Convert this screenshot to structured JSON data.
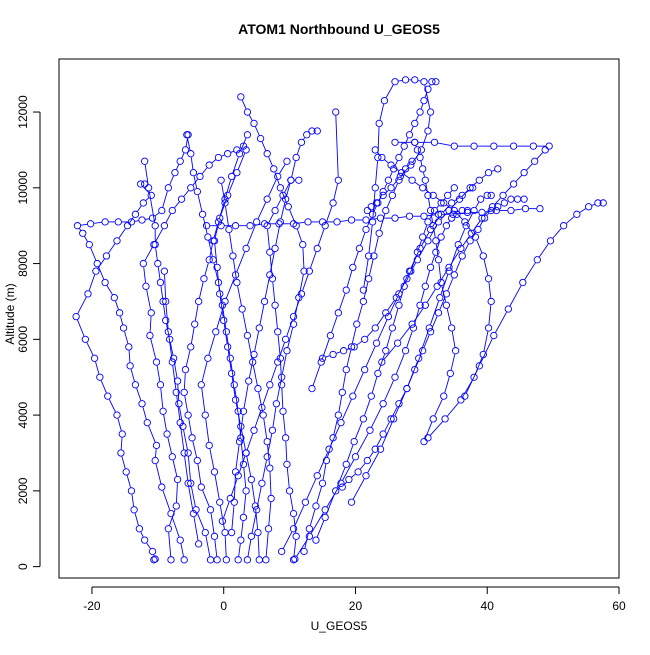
{
  "chart_data": {
    "type": "line",
    "title": "ATOM1 Northbound U_GEOS5",
    "xlabel": "U_GEOS5",
    "ylabel": "Altitude (m)",
    "xlim": [
      -25,
      60
    ],
    "ylim": [
      -300,
      13400
    ],
    "xticks": [
      -20,
      0,
      20,
      40,
      60
    ],
    "yticks": [
      0,
      2000,
      4000,
      6000,
      8000,
      10000,
      12000
    ],
    "grid": false,
    "legend": "none",
    "marker": "open-circle",
    "color": "#0000ff",
    "series": [
      {
        "x": [
          -10.6,
          -10.4,
          -10.8,
          -12.0,
          -12.8,
          -13.6,
          -14.0,
          -14.8,
          -15.6,
          -15.4,
          -16.2,
          -17.6,
          -18.8,
          -19.6,
          -21.0,
          -22.4,
          -20.6,
          -19.4,
          -17.8,
          -16.2,
          -14.6,
          -13.4,
          -12.2,
          -11.0,
          -12.6,
          -12.0
        ],
        "y": [
          180,
          200,
          400,
          700,
          1000,
          1500,
          2000,
          2500,
          3000,
          3500,
          4000,
          4500,
          5000,
          5500,
          6000,
          6600,
          7200,
          7800,
          8200,
          8600,
          9000,
          9300,
          9600,
          9800,
          10100,
          10100
        ]
      },
      {
        "x": [
          -6.0,
          -6.6,
          -8.0,
          -9.4,
          -10.4,
          -10.2,
          -11.6,
          -12.4,
          -13.4,
          -14.2,
          -14.4,
          -15.2,
          -15.8,
          -16.6,
          -18.0,
          -19.2,
          -20.4,
          -21.4,
          -22.2,
          -20.2,
          -18.0,
          -16.0,
          -14.0,
          -12.4,
          -10.8,
          -9.4,
          -8.4,
          -7.4,
          -6.6,
          -5.8,
          -5.4
        ],
        "y": [
          180,
          700,
          1400,
          2100,
          2800,
          3200,
          3800,
          4300,
          4800,
          5300,
          5800,
          6300,
          6700,
          7100,
          7500,
          8000,
          8500,
          8800,
          9000,
          9050,
          9100,
          9100,
          9100,
          9150,
          9200,
          9400,
          10000,
          10400,
          10700,
          11000,
          11400
        ]
      },
      {
        "x": [
          -8.0,
          -8.4,
          -7.2,
          -7.0,
          -7.8,
          -8.6,
          -9.2,
          -9.6,
          -10.2,
          -11.2,
          -11.0,
          -11.8,
          -12.2,
          -10.6,
          -9.0,
          -7.8,
          -6.4,
          -5.0,
          -3.6,
          -2.2,
          -0.8,
          0.6,
          2.0,
          3.0
        ],
        "y": [
          180,
          1000,
          1600,
          2300,
          2900,
          3500,
          4100,
          4800,
          5400,
          6100,
          6700,
          7400,
          8000,
          8500,
          9000,
          9400,
          9700,
          10000,
          10300,
          10600,
          10800,
          10900,
          11000,
          11100
        ]
      },
      {
        "x": [
          -2.0,
          -2.8,
          -4.2,
          -5.0,
          -5.4,
          -6.2,
          -6.8,
          -7.0,
          -7.6,
          -8.2,
          -8.8,
          -9.2,
          -9.6,
          -10.0,
          -10.4,
          -10.4,
          -11.4,
          -12.0
        ],
        "y": [
          180,
          900,
          1500,
          2200,
          3000,
          3700,
          4300,
          4900,
          5500,
          6000,
          6500,
          7000,
          7500,
          8000,
          8500,
          9000,
          10000,
          10700
        ]
      },
      {
        "x": [
          -1.0,
          -1.4,
          -2.0,
          -3.4,
          -4.0,
          -4.8,
          -5.4,
          -6.0,
          -5.8,
          -5.0,
          -4.4,
          -3.8,
          -3.0,
          -2.2,
          -1.6,
          -0.8,
          0.2,
          1.2,
          2.4,
          3.6
        ],
        "y": [
          180,
          800,
          1500,
          2100,
          2800,
          3400,
          4000,
          4600,
          5200,
          5800,
          6400,
          7000,
          7600,
          8100,
          8600,
          9100,
          9700,
          10300,
          10900,
          11400
        ]
      },
      {
        "x": [
          0.4,
          0.2,
          -0.6,
          -1.4,
          -2.2,
          -2.8,
          -3.4,
          -2.4,
          -1.2,
          0.2,
          1.8,
          3.4,
          5.0,
          6.6,
          8.2,
          9.6
        ],
        "y": [
          180,
          900,
          1700,
          2500,
          3200,
          4000,
          4800,
          5500,
          6200,
          7000,
          7700,
          8400,
          9100,
          9700,
          10300,
          10700
        ]
      },
      {
        "x": [
          2.2,
          2.6,
          3.0,
          3.4,
          3.0,
          2.6,
          2.2,
          1.6,
          1.0,
          0.4,
          -0.2,
          -0.8,
          -1.6,
          -2.4,
          -3.2,
          -4.0,
          -4.6,
          -5.0,
          -5.6
        ],
        "y": [
          180,
          700,
          1300,
          2000,
          2700,
          3400,
          4100,
          4800,
          5500,
          6200,
          6900,
          7500,
          8100,
          8700,
          9300,
          9900,
          10400,
          10900,
          11400
        ]
      },
      {
        "x": [
          3.6,
          4.2,
          5.0,
          5.8,
          6.6,
          7.4,
          8.0,
          8.8,
          9.6,
          10.6,
          11.4,
          12.2,
          12.0,
          11.0,
          9.8,
          8.6,
          7.6,
          6.6,
          5.6,
          4.6,
          3.6,
          2.6
        ],
        "y": [
          180,
          800,
          1500,
          2200,
          2900,
          3600,
          4300,
          5000,
          5700,
          6400,
          7100,
          7800,
          8500,
          9000,
          9500,
          10000,
          10500,
          10900,
          11300,
          11700,
          12000,
          12400
        ]
      },
      {
        "x": [
          5.4,
          5.2,
          4.8,
          4.2,
          3.4,
          2.6,
          1.8,
          1.2,
          0.6,
          0.0,
          -0.6,
          -1.0,
          -1.4,
          -0.6,
          0.6,
          2.0,
          3.4
        ],
        "y": [
          180,
          900,
          1600,
          2300,
          3000,
          3700,
          4400,
          5100,
          5800,
          6500,
          7200,
          7900,
          8600,
          9200,
          9800,
          10400,
          11000
        ]
      },
      {
        "x": [
          6.4,
          6.8,
          7.2,
          7.0,
          6.6,
          6.0,
          5.2,
          4.4,
          3.6,
          2.8,
          2.0,
          1.4,
          0.8,
          0.2,
          -0.4
        ],
        "y": [
          180,
          1000,
          1800,
          2600,
          3300,
          4000,
          4700,
          5400,
          6100,
          6800,
          7500,
          8200,
          8900,
          9600,
          10200
        ]
      },
      {
        "x": [
          10.6,
          11.0,
          10.6,
          10.0,
          9.6,
          9.4,
          9.0,
          8.8,
          8.6,
          8.2,
          7.8,
          7.4,
          7.0,
          6.6,
          7.8,
          9.0,
          10.2,
          11.4
        ],
        "y": [
          180,
          800,
          1400,
          2000,
          2700,
          3400,
          4100,
          4800,
          5500,
          6200,
          6900,
          7600,
          8300,
          9000,
          9400,
          9800,
          10200,
          10200
        ]
      },
      {
        "x": [
          12.2,
          13.0,
          14.0,
          15.0,
          15.6,
          16.6,
          17.4,
          18.0,
          18.6,
          19.4,
          20.2,
          21.2,
          22.0,
          22.8,
          23.6,
          24.6,
          25.6,
          26.6,
          27.6,
          28.6
        ],
        "y": [
          400,
          1000,
          1600,
          2200,
          2800,
          3400,
          4000,
          4600,
          5200,
          5800,
          6400,
          7000,
          7600,
          8200,
          8800,
          9400,
          9800,
          10200,
          10500,
          10700
        ]
      },
      {
        "x": [
          14.0,
          15.4,
          17.0,
          18.6,
          19.8,
          21.2,
          22.4,
          23.4,
          24.6,
          25.6,
          26.6,
          27.4,
          28.4,
          29.4,
          30.2,
          31.0,
          32.0,
          33.0,
          34.0,
          35.0
        ],
        "y": [
          700,
          1300,
          2000,
          2700,
          3300,
          3900,
          4500,
          5100,
          5700,
          6300,
          6900,
          7400,
          7800,
          8300,
          8700,
          9100,
          9400,
          9600,
          9800,
          10000
        ]
      },
      {
        "x": [
          10.8,
          13.0,
          15.4,
          17.8,
          20.0,
          22.2,
          24.2,
          26.0,
          27.6,
          28.8,
          29.8,
          30.6,
          31.4,
          32.2,
          33.0,
          33.8,
          34.6,
          35.4,
          36.2,
          37.0
        ],
        "y": [
          200,
          800,
          1500,
          2200,
          2900,
          3600,
          4300,
          5000,
          5700,
          6300,
          6900,
          7400,
          7900,
          8300,
          8700,
          9000,
          9200,
          9300,
          9400,
          9400
        ]
      },
      {
        "x": [
          8.8,
          10.6,
          12.4,
          14.2,
          16.0,
          17.8,
          19.6,
          21.4,
          23.2,
          25.0,
          26.6,
          28.2,
          29.8,
          31.4,
          33.0,
          34.6,
          36.2,
          37.8
        ],
        "y": [
          400,
          1000,
          1700,
          2400,
          3100,
          3800,
          4500,
          5200,
          5900,
          6600,
          7200,
          7800,
          8400,
          8900,
          9300,
          9600,
          9800,
          10000
        ]
      },
      {
        "x": [
          19.4,
          21.6,
          23.8,
          25.8,
          27.8,
          29.6,
          31.2,
          32.8,
          34.2,
          35.6,
          36.8,
          38.0,
          39.0,
          40.0,
          40.6
        ],
        "y": [
          1700,
          2400,
          3100,
          3900,
          4700,
          5500,
          6300,
          7100,
          7800,
          8500,
          9000,
          9400,
          9700,
          9800,
          9800
        ]
      },
      {
        "x": [
          30.4,
          31.8,
          33.4,
          34.4,
          35.2,
          34.6,
          33.8,
          33.0,
          32.6,
          32.2,
          31.8,
          31.4,
          31.0,
          30.6,
          30.2,
          29.8,
          29.4,
          29.0
        ],
        "y": [
          3300,
          3900,
          4500,
          5100,
          5700,
          6300,
          6900,
          7500,
          8100,
          8600,
          9000,
          9400,
          9800,
          10200,
          10500,
          10800,
          11000,
          11200
        ]
      },
      {
        "x": [
          31.0,
          33.6,
          36.0,
          38.0,
          39.4,
          40.2,
          40.6,
          40.2,
          39.4,
          38.2,
          36.6,
          35.0,
          33.4,
          31.8,
          30.2,
          28.6,
          27.0,
          25.4,
          24.0,
          23.0
        ],
        "y": [
          3400,
          3900,
          4400,
          5000,
          5600,
          6300,
          7000,
          7600,
          8200,
          8700,
          9100,
          9400,
          9600,
          9800,
          10000,
          10200,
          10400,
          10600,
          10800,
          11000
        ]
      },
      {
        "x": [
          18.0,
          19.0,
          20.4,
          21.8,
          23.0,
          24.2,
          25.4,
          26.6,
          27.8,
          29.0,
          30.2,
          31.4,
          32.6,
          33.8,
          35.0,
          36.2,
          37.4,
          38.6,
          39.6,
          40.6,
          41.6,
          42.6,
          43.6,
          44.6,
          45.6
        ],
        "y": [
          2100,
          2300,
          2500,
          2800,
          3100,
          3500,
          3900,
          4300,
          4700,
          5200,
          5700,
          6200,
          6700,
          7200,
          7700,
          8200,
          8600,
          8900,
          9200,
          9400,
          9500,
          9600,
          9700,
          9700,
          9700
        ]
      },
      {
        "x": [
          36.6,
          38.8,
          41.0,
          43.2,
          45.4,
          47.6,
          49.6,
          51.6,
          53.6,
          55.4,
          56.8,
          57.6
        ],
        "y": [
          4500,
          5300,
          6100,
          6800,
          7500,
          8100,
          8600,
          9000,
          9300,
          9500,
          9600,
          9600
        ]
      },
      {
        "x": [
          24.0,
          26.4,
          28.6,
          30.6,
          32.4,
          34.2,
          36.0,
          37.6,
          39.2,
          40.8,
          42.4,
          44.0,
          45.6,
          47.2,
          48.8,
          49.4,
          47.0,
          44.0,
          41.0,
          38.0,
          35.0,
          32.0,
          29.0,
          26.0
        ],
        "y": [
          5400,
          5900,
          6400,
          6900,
          7400,
          7900,
          8400,
          8800,
          9200,
          9500,
          9800,
          10100,
          10400,
          10700,
          11000,
          11100,
          11100,
          11100,
          11100,
          11100,
          11100,
          11200,
          11200,
          11200
        ]
      },
      {
        "x": [
          15.0,
          16.6,
          18.2,
          19.8,
          21.4,
          23.0,
          24.6,
          26.2,
          27.8,
          29.4,
          31.0,
          32.6,
          34.2,
          35.8,
          37.4,
          38.8,
          40.2,
          41.6
        ],
        "y": [
          5500,
          5600,
          5700,
          5800,
          6000,
          6300,
          6700,
          7100,
          7600,
          8100,
          8600,
          9100,
          9400,
          9700,
          10000,
          10200,
          10400,
          10500
        ]
      },
      {
        "x": [
          13.4,
          14.8,
          16.2,
          17.4,
          18.6,
          19.6,
          20.6,
          21.6,
          22.6,
          23.4,
          24.2,
          25.0,
          25.8,
          26.6,
          27.4,
          28.2,
          29.0,
          29.8,
          30.4,
          31.0,
          31.6,
          32.2
        ],
        "y": [
          4700,
          5400,
          6100,
          6700,
          7300,
          7900,
          8400,
          8900,
          9300,
          9600,
          9900,
          10200,
          10500,
          10800,
          11100,
          11400,
          11700,
          12000,
          12300,
          12600,
          12800,
          12800
        ]
      },
      {
        "x": [
          21.2,
          22.0,
          22.6,
          23.0,
          23.4,
          23.6,
          24.4,
          26.0,
          27.6,
          29.0,
          30.4,
          31.4,
          31.0,
          30.0,
          28.4,
          26.8,
          25.4,
          24.2,
          23.2,
          22.4,
          21.8
        ],
        "y": [
          7300,
          8200,
          9100,
          10000,
          10800,
          11700,
          12300,
          12800,
          12850,
          12850,
          12800,
          12000,
          11500,
          11000,
          10600,
          10300,
          10000,
          9800,
          9600,
          9500,
          9400
        ]
      },
      {
        "x": [
          -2.6,
          -0.4,
          1.8,
          4.0,
          6.2,
          8.4,
          10.6,
          12.8,
          15.0,
          17.2,
          19.4,
          21.6,
          23.8,
          26.0,
          28.2,
          30.4,
          32.6,
          34.8,
          37.0,
          39.2,
          41.4,
          43.6,
          45.8,
          48.0
        ],
        "y": [
          9000,
          9000,
          9000,
          9000,
          9050,
          9050,
          9050,
          9100,
          9100,
          9100,
          9150,
          9150,
          9200,
          9200,
          9250,
          9250,
          9300,
          9300,
          9350,
          9350,
          9400,
          9400,
          9450,
          9450
        ]
      },
      {
        "x": [
          -0.2,
          1.0,
          2.2,
          3.4,
          4.6,
          5.8,
          7.0,
          8.2,
          9.4,
          10.6,
          11.8,
          13.0,
          14.2,
          15.4,
          16.6,
          17.4,
          17.0
        ],
        "y": [
          1200,
          1800,
          2400,
          3000,
          3600,
          4200,
          4800,
          5400,
          6000,
          6600,
          7200,
          7800,
          8400,
          9000,
          9600,
          10200,
          12000
        ]
      },
      {
        "x": [
          1.2,
          1.6,
          1.8,
          2.4,
          3.0,
          3.8,
          4.6,
          5.4,
          6.2,
          7.0,
          7.8,
          8.6,
          9.4,
          10.2,
          11.0,
          11.8,
          12.6,
          13.4,
          14.2
        ],
        "y": [
          900,
          1700,
          2500,
          3300,
          4100,
          4900,
          5600,
          6300,
          7000,
          7700,
          8400,
          9100,
          9700,
          10200,
          10800,
          11200,
          11400,
          11500,
          11500
        ]
      },
      {
        "x": [
          -3.8,
          -4.6,
          -5.4,
          -6.0,
          -6.6,
          -7.2,
          -7.8,
          -8.4,
          -8.8,
          -9.0
        ],
        "y": [
          600,
          1400,
          2200,
          3000,
          3800,
          4600,
          5400,
          6200,
          7000,
          7800
        ]
      }
    ]
  }
}
